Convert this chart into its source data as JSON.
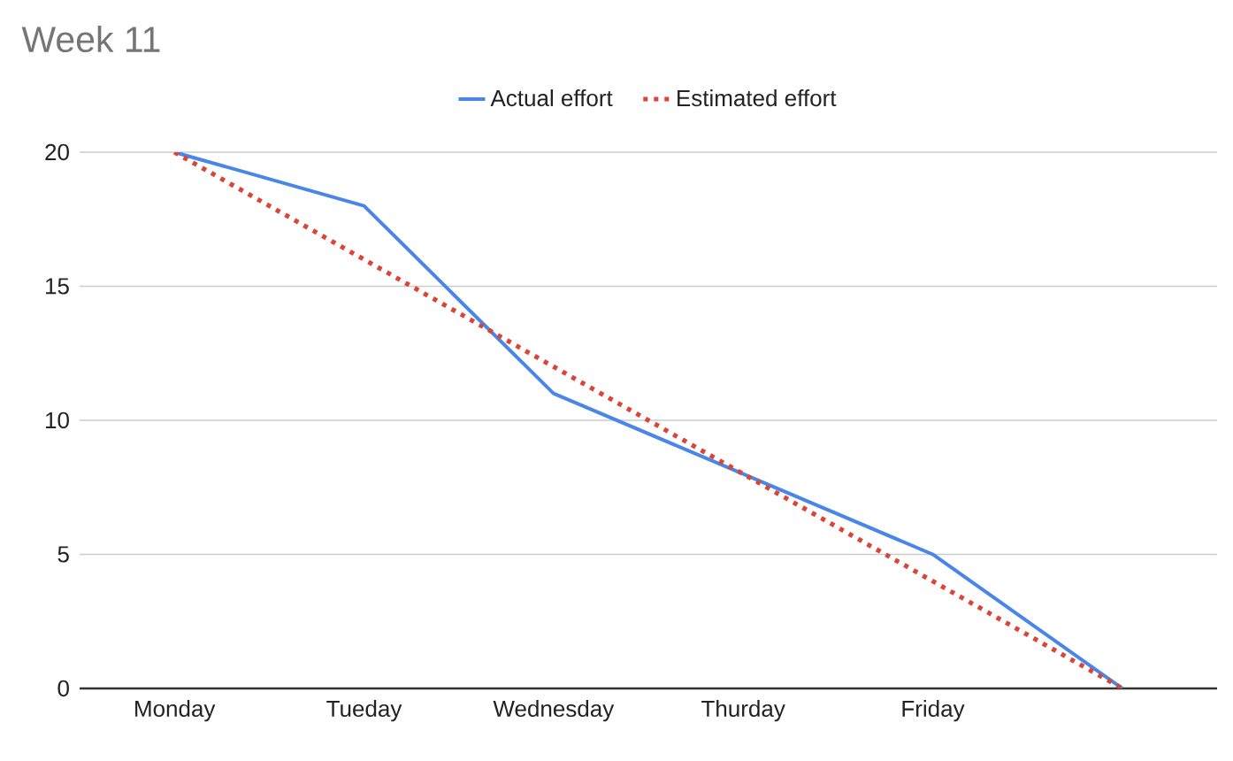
{
  "chart_data": {
    "type": "line",
    "title": "Week 11",
    "categories": [
      "Monday",
      "Tueday",
      "Wednesday",
      "Thurday",
      "Friday",
      null
    ],
    "series": [
      {
        "name": "Actual effort",
        "color": "#4a86e8",
        "line_style": "solid",
        "values": [
          20,
          18,
          11,
          8,
          5,
          0
        ]
      },
      {
        "name": "Estimated effort",
        "color": "#db4437",
        "line_style": "dotted",
        "values": [
          20,
          16,
          12,
          8,
          4,
          0
        ]
      }
    ],
    "ylim": [
      0,
      20
    ],
    "yticks": [
      0,
      5,
      10,
      15,
      20
    ],
    "grid": "y",
    "legend": "top",
    "marker": "none"
  }
}
